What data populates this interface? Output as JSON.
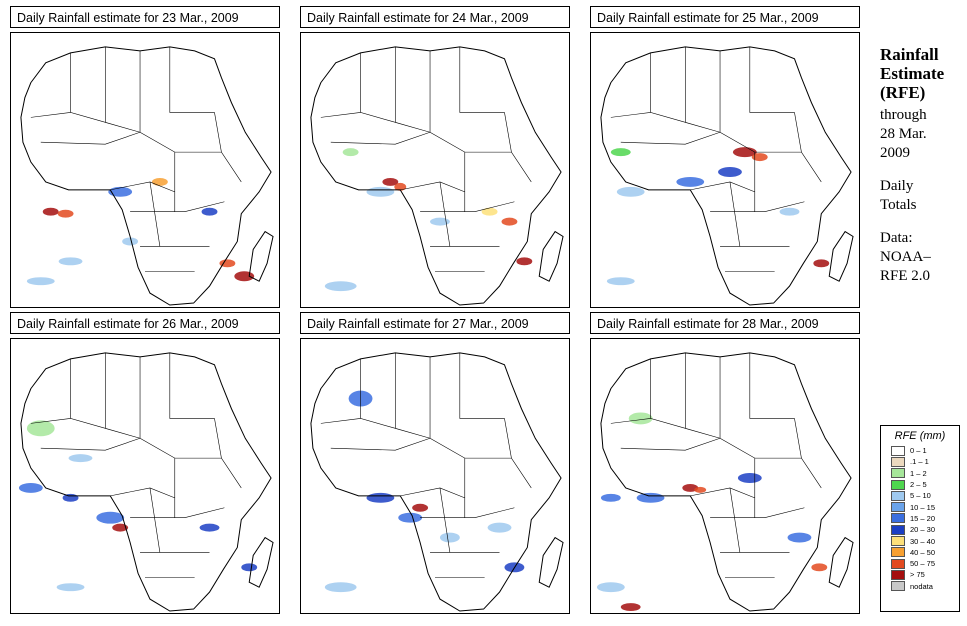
{
  "panels": [
    {
      "title": "Daily Rainfall estimate for  23 Mar., 2009",
      "date": "23 Mar., 2009"
    },
    {
      "title": "Daily Rainfall estimate for  24 Mar., 2009",
      "date": "24 Mar., 2009"
    },
    {
      "title": "Daily Rainfall estimate for  25 Mar., 2009",
      "date": "25 Mar., 2009"
    },
    {
      "title": "Daily Rainfall estimate for  26 Mar., 2009",
      "date": "26 Mar., 2009"
    },
    {
      "title": "Daily Rainfall estimate for  27 Mar., 2009",
      "date": "27 Mar., 2009"
    },
    {
      "title": "Daily Rainfall estimate for  28 Mar., 2009",
      "date": "28 Mar., 2009"
    }
  ],
  "sidebar": {
    "title_line1": "Rainfall",
    "title_line2": "Estimate",
    "title_line3": "(RFE)",
    "through_label": "through",
    "through_date_line1": "28 Mar.",
    "through_date_line2": "2009",
    "totals_line1": "Daily",
    "totals_line2": "Totals",
    "data_label": "Data:",
    "data_source_line1": "NOAA–",
    "data_source_line2": "RFE 2.0"
  },
  "legend": {
    "title": "RFE (mm)",
    "items": [
      {
        "label": "0 – 1",
        "color": "#ffffff"
      },
      {
        "label": ".1 – 1",
        "color": "#ecd9bf"
      },
      {
        "label": "1 – 2",
        "color": "#a6e69a"
      },
      {
        "label": "2 – 5",
        "color": "#4fd64f"
      },
      {
        "label": "5 – 10",
        "color": "#9fc9ef"
      },
      {
        "label": "10 – 15",
        "color": "#6aa3ea"
      },
      {
        "label": "15 – 20",
        "color": "#3b6fe0"
      },
      {
        "label": "20 – 30",
        "color": "#1c3fc4"
      },
      {
        "label": "30 – 40",
        "color": "#fde07a"
      },
      {
        "label": "40 – 50",
        "color": "#f7a032"
      },
      {
        "label": "50 – 75",
        "color": "#e34a20"
      },
      {
        "label": "> 75",
        "color": "#a40f0f"
      },
      {
        "label": "nodata",
        "color": "#c8c8c8"
      }
    ]
  }
}
